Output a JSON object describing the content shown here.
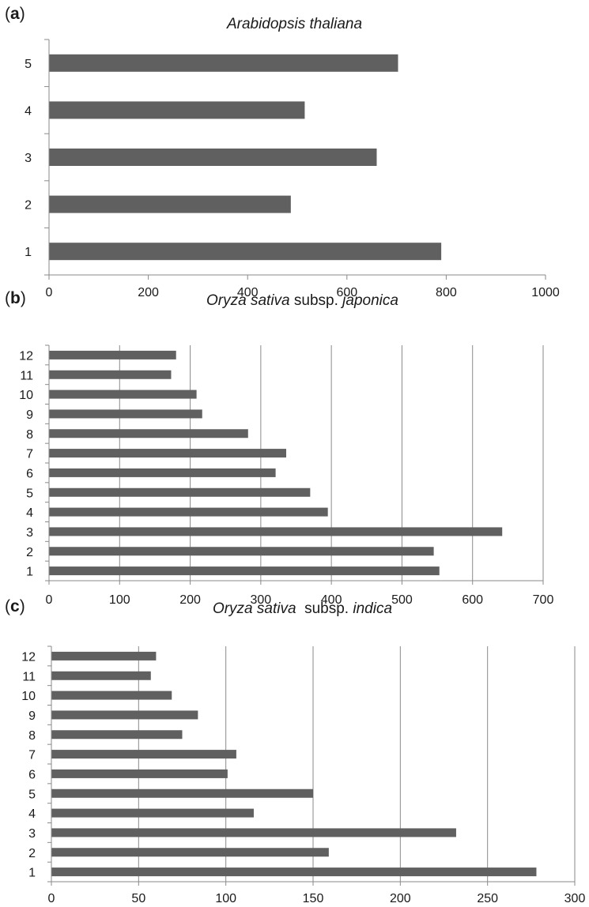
{
  "chart_data": [
    {
      "type": "bar",
      "orientation": "horizontal",
      "panel_label": "a",
      "title": "Arabidopsis thaliana",
      "categories": [
        "1",
        "2",
        "3",
        "4",
        "5"
      ],
      "values": [
        790,
        487,
        660,
        515,
        703
      ],
      "xlim": [
        0,
        1000
      ],
      "xticks": [
        "0",
        "200",
        "400",
        "600",
        "800",
        "1000"
      ],
      "grid": false,
      "bar_color": "#606060"
    },
    {
      "type": "bar",
      "orientation": "horizontal",
      "panel_label": "b",
      "title_parts": [
        "Oryza sativa",
        " subsp. ",
        "japonica"
      ],
      "categories": [
        "1",
        "2",
        "3",
        "4",
        "5",
        "6",
        "7",
        "8",
        "9",
        "10",
        "11",
        "12"
      ],
      "values": [
        553,
        545,
        642,
        395,
        370,
        321,
        336,
        282,
        217,
        209,
        173,
        180
      ],
      "xlim": [
        0,
        700
      ],
      "xticks": [
        "0",
        "100",
        "200",
        "300",
        "400",
        "500",
        "600",
        "700"
      ],
      "grid": true,
      "bar_color": "#606060"
    },
    {
      "type": "bar",
      "orientation": "horizontal",
      "panel_label": "c",
      "title_parts": [
        "Oryza sativa",
        "  subsp. ",
        "indica"
      ],
      "categories": [
        "1",
        "2",
        "3",
        "4",
        "5",
        "6",
        "7",
        "8",
        "9",
        "10",
        "11",
        "12"
      ],
      "values": [
        278,
        159,
        232,
        116,
        150,
        101,
        106,
        75,
        84,
        69,
        57,
        60
      ],
      "xlim": [
        0,
        300
      ],
      "xticks": [
        "0",
        "50",
        "100",
        "150",
        "200",
        "250",
        "300"
      ],
      "grid": true,
      "bar_color": "#606060"
    }
  ]
}
